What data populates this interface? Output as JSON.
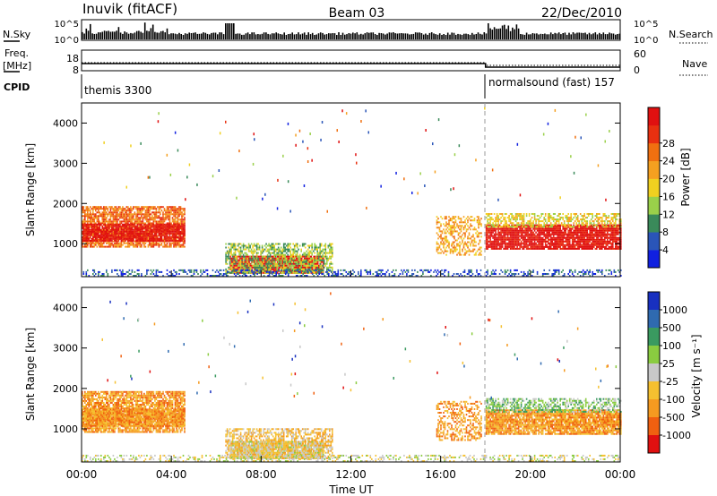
{
  "header": {
    "station": "Inuvik (fitACF)",
    "beam": "Beam 03",
    "date": "22/Dec/2010"
  },
  "nsky_panel": {
    "left_label": "N.Sky",
    "right_label": "N.Search",
    "left_ticks": [
      "10^5",
      "10^0"
    ],
    "right_ticks": [
      "10^5",
      "10^0"
    ]
  },
  "freq_panel": {
    "label_top": "Freq.",
    "label_unit": "[MHz]",
    "left_ticks": [
      "18",
      "8"
    ],
    "right_label": "Nave",
    "right_ticks": [
      "60",
      "0"
    ]
  },
  "cpid": {
    "label": "CPID",
    "segments": [
      {
        "name": "themis 3300",
        "start_hour": 0
      },
      {
        "name": "normalsound (fast) 157",
        "start_hour": 18
      }
    ]
  },
  "chart_data": [
    {
      "type": "heatmap",
      "quantity": "Power",
      "ylabel": "Slant Range [km]",
      "xlabel": "Time UT",
      "ylim": [
        180,
        4500
      ],
      "yticks": [
        1000,
        2000,
        3000,
        4000
      ],
      "xlim_hours": [
        0,
        24
      ],
      "xticks": [
        "00:00",
        "04:00",
        "08:00",
        "12:00",
        "16:00",
        "20:00",
        "00:00"
      ],
      "colorbar": {
        "title": "Power [dB]",
        "ticks": [
          "4",
          "8",
          "12",
          "16",
          "20",
          "24",
          "28"
        ],
        "colors": [
          "#1020e0",
          "#2a55b8",
          "#3a8a5a",
          "#9ad04a",
          "#f0d020",
          "#f5a020",
          "#f07010",
          "#e83010",
          "#e01010"
        ]
      }
    },
    {
      "type": "heatmap",
      "quantity": "Velocity",
      "ylabel": "Slant Range [km]",
      "xlabel": "Time UT",
      "ylim": [
        180,
        4500
      ],
      "yticks": [
        1000,
        2000,
        3000,
        4000
      ],
      "xlim_hours": [
        0,
        24
      ],
      "xticks": [
        "00:00",
        "04:00",
        "08:00",
        "12:00",
        "16:00",
        "20:00",
        "00:00"
      ],
      "colorbar": {
        "title": "Velocity [m s⁻¹]",
        "ticks": [
          "1000",
          "500",
          "100",
          "25",
          "-25",
          "-100",
          "-500",
          "-1000"
        ],
        "colors": [
          "#1830c0",
          "#2f6ab0",
          "#3a9a60",
          "#8acc40",
          "#c8c8c8",
          "#f5c030",
          "#f59a20",
          "#f06010",
          "#e01010"
        ]
      }
    }
  ],
  "echo_regions": [
    {
      "t0": 0.0,
      "t1": 4.6,
      "r0": 900,
      "r1": 1900,
      "power_level": 6,
      "velocity_level": 6,
      "density": 0.78
    },
    {
      "t0": 0.0,
      "t1": 4.6,
      "r0": 1050,
      "r1": 1500,
      "power_level": 8,
      "velocity_level": 6,
      "density": 0.85
    },
    {
      "t0": 6.6,
      "t1": 10.8,
      "r0": 250,
      "r1": 700,
      "power_level": 8,
      "velocity_level": 4,
      "density": 0.92
    },
    {
      "t0": 6.4,
      "t1": 11.2,
      "r0": 250,
      "r1": 1000,
      "power_level": 3,
      "velocity_level": 5,
      "density": 0.6
    },
    {
      "t0": 15.8,
      "t1": 17.8,
      "r0": 700,
      "r1": 1650,
      "power_level": 5,
      "velocity_level": 6,
      "density": 0.45
    },
    {
      "t0": 18.0,
      "t1": 24.0,
      "r0": 850,
      "r1": 1450,
      "power_level": 8,
      "velocity_level": 6,
      "density": 0.88
    },
    {
      "t0": 18.0,
      "t1": 24.0,
      "r0": 1400,
      "r1": 1750,
      "power_level": 4,
      "velocity_level": 3,
      "density": 0.55
    },
    {
      "t0": 0.0,
      "t1": 24.0,
      "r0": 180,
      "r1": 320,
      "power_level": 1,
      "velocity_level": 4,
      "density": 0.35
    }
  ]
}
